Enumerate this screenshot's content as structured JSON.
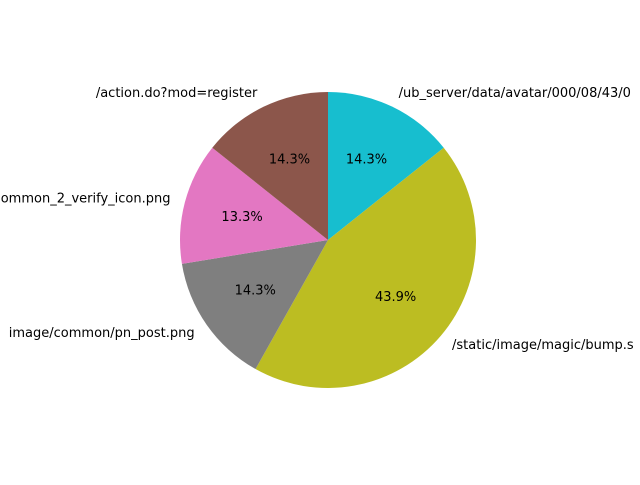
{
  "chart_data": {
    "type": "pie",
    "title": "",
    "slices": [
      {
        "label": "/ub_server/data/avatar/000/08/43/0",
        "value": 14.3,
        "pct_text": "14.3%",
        "color": "#17becf"
      },
      {
        "label": "/static/image/magic/bump.s",
        "value": 43.9,
        "pct_text": "43.9%",
        "color": "#bcbd22"
      },
      {
        "label": "image/common/pn_post.png",
        "value": 14.3,
        "pct_text": "14.3%",
        "color": "#7f7f7f"
      },
      {
        "label": "ommon_2_verify_icon.png",
        "value": 13.3,
        "pct_text": "13.3%",
        "color": "#e377c2"
      },
      {
        "label": "/action.do?mod=register",
        "value": 14.3,
        "pct_text": "14.3%",
        "color": "#8c564b"
      }
    ],
    "start_angle_deg": 90,
    "direction": "clockwise"
  }
}
